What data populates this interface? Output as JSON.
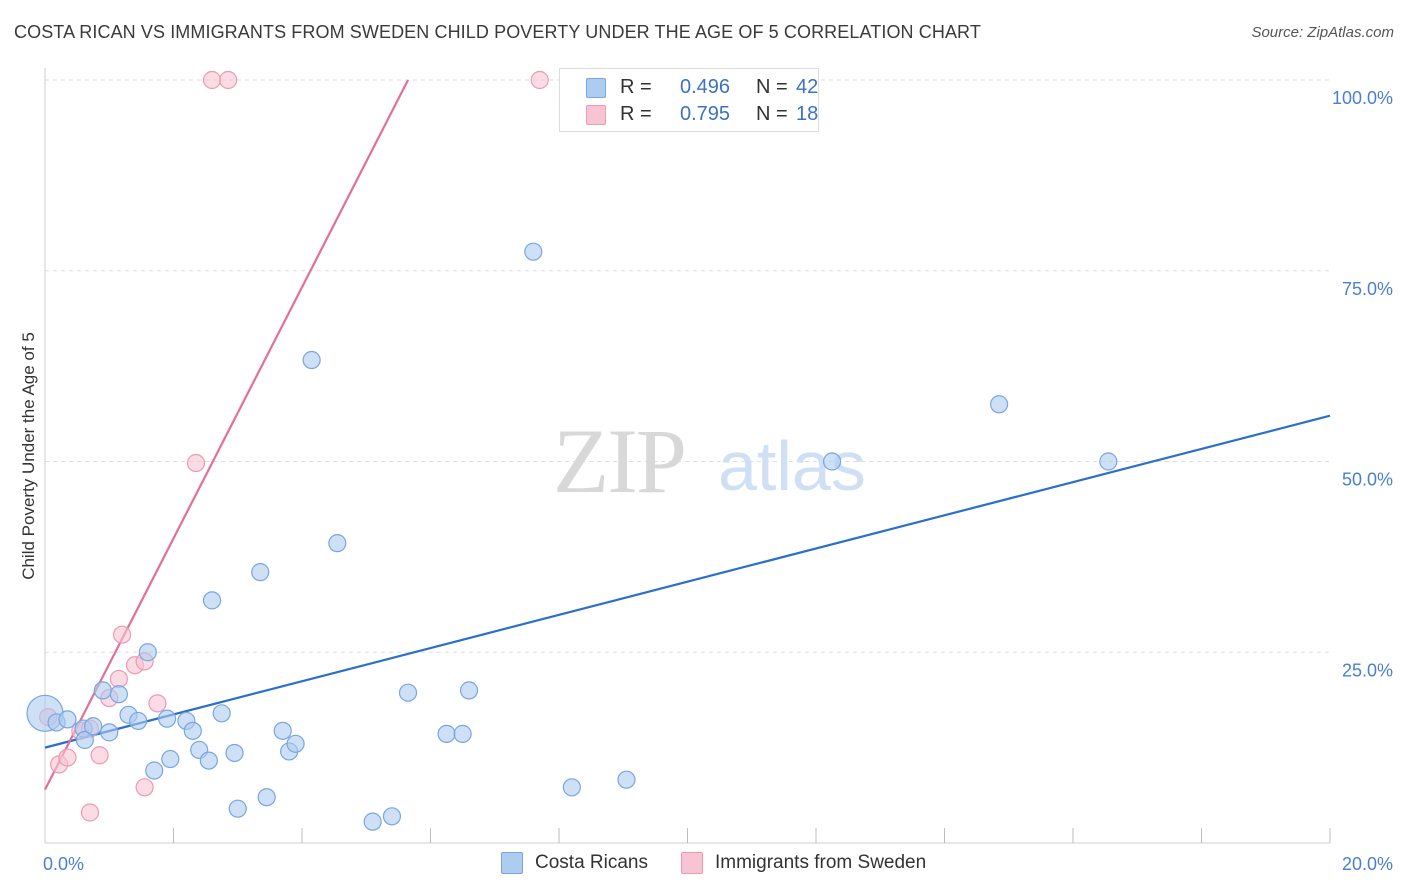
{
  "title": "COSTA RICAN VS IMMIGRANTS FROM SWEDEN CHILD POVERTY UNDER THE AGE OF 5 CORRELATION CHART",
  "source": "Source: ZipAtlas.com",
  "watermark": {
    "zip": "ZIP",
    "atlas": "atlas"
  },
  "colors": {
    "blue_fill": "#aecbf0",
    "blue_stroke": "#7aa5e0",
    "blue_line": "#2a6fcc",
    "pink_fill": "#f8c4d3",
    "pink_stroke": "#eb9ab4",
    "pink_line": "#e0709a",
    "tick_text": "#4a7fd0",
    "grid": "#dedede"
  },
  "legend": {
    "rows": [
      {
        "r_label": "R =",
        "r_value": "0.496",
        "n_label": "N =",
        "n_value": "42"
      },
      {
        "r_label": "R =",
        "r_value": "0.795",
        "n_label": "N =",
        "n_value": "18"
      }
    ]
  },
  "bottom_legend": {
    "blue_label": "Costa Ricans",
    "pink_label": "Immigrants from Sweden"
  },
  "chart_data": {
    "type": "scatter",
    "title": "COSTA RICAN VS IMMIGRANTS FROM SWEDEN CHILD POVERTY UNDER THE AGE OF 5 CORRELATION CHART",
    "xlabel": "",
    "ylabel": "Child Poverty Under the Age of 5",
    "xlim": [
      0,
      20
    ],
    "ylim": [
      0,
      100
    ],
    "x_tick_labels": [
      {
        "value": 0,
        "label": "0.0%"
      },
      {
        "value": 20,
        "label": "20.0%"
      }
    ],
    "y_tick_labels": [
      {
        "value": 25,
        "label": "25.0%"
      },
      {
        "value": 50,
        "label": "50.0%"
      },
      {
        "value": 75,
        "label": "75.0%"
      },
      {
        "value": 100,
        "label": "100.0%"
      }
    ],
    "x_minor_ticks": [
      2,
      4,
      6,
      8,
      10,
      12,
      14,
      16,
      18,
      20
    ],
    "series": [
      {
        "name": "Costa Ricans",
        "color": "#aecbf0",
        "r": 0.496,
        "n": 42,
        "trend": {
          "x": [
            0,
            20
          ],
          "y": [
            12.5,
            56.0
          ]
        },
        "points": [
          [
            0.0,
            17.0,
            "big"
          ],
          [
            0.18,
            15.8
          ],
          [
            0.35,
            16.2
          ],
          [
            0.6,
            15.0
          ],
          [
            0.62,
            13.5
          ],
          [
            0.75,
            15.3
          ],
          [
            0.9,
            20.0
          ],
          [
            1.0,
            14.5
          ],
          [
            1.15,
            19.5
          ],
          [
            1.3,
            16.8
          ],
          [
            1.45,
            16.0
          ],
          [
            1.6,
            25.0
          ],
          [
            1.7,
            9.5
          ],
          [
            1.9,
            16.3
          ],
          [
            1.95,
            11.0
          ],
          [
            2.2,
            16.0
          ],
          [
            2.3,
            14.7
          ],
          [
            2.4,
            12.2
          ],
          [
            2.55,
            10.8
          ],
          [
            2.6,
            31.8
          ],
          [
            2.75,
            17.0
          ],
          [
            2.95,
            11.8
          ],
          [
            3.0,
            4.5
          ],
          [
            3.35,
            35.5
          ],
          [
            3.45,
            6.0
          ],
          [
            3.7,
            14.7
          ],
          [
            3.8,
            12.0
          ],
          [
            3.9,
            13.0
          ],
          [
            4.15,
            63.3
          ],
          [
            4.55,
            39.3
          ],
          [
            5.1,
            2.8
          ],
          [
            5.4,
            3.5
          ],
          [
            5.65,
            19.7
          ],
          [
            6.25,
            14.3
          ],
          [
            6.5,
            14.3
          ],
          [
            6.6,
            20.0
          ],
          [
            7.6,
            77.5
          ],
          [
            8.2,
            7.3
          ],
          [
            9.05,
            8.3
          ],
          [
            12.25,
            50.0
          ],
          [
            14.85,
            57.5
          ],
          [
            16.55,
            50.0
          ]
        ]
      },
      {
        "name": "Immigrants from Sweden",
        "color": "#f8c4d3",
        "r": 0.795,
        "n": 18,
        "trend": {
          "x": [
            0,
            5.65
          ],
          "y": [
            7.0,
            100.0
          ]
        },
        "points": [
          [
            0.05,
            16.5
          ],
          [
            0.22,
            10.3
          ],
          [
            0.35,
            11.2
          ],
          [
            0.55,
            14.7
          ],
          [
            0.7,
            15.0
          ],
          [
            0.7,
            4.0
          ],
          [
            0.85,
            11.5
          ],
          [
            1.0,
            19.0
          ],
          [
            1.15,
            21.5
          ],
          [
            1.2,
            27.3
          ],
          [
            1.4,
            23.3
          ],
          [
            1.55,
            23.8
          ],
          [
            1.55,
            7.3
          ],
          [
            1.75,
            18.3
          ],
          [
            2.35,
            49.8
          ],
          [
            2.6,
            100.0
          ],
          [
            2.85,
            100.0
          ],
          [
            7.7,
            100.0
          ]
        ]
      }
    ]
  }
}
